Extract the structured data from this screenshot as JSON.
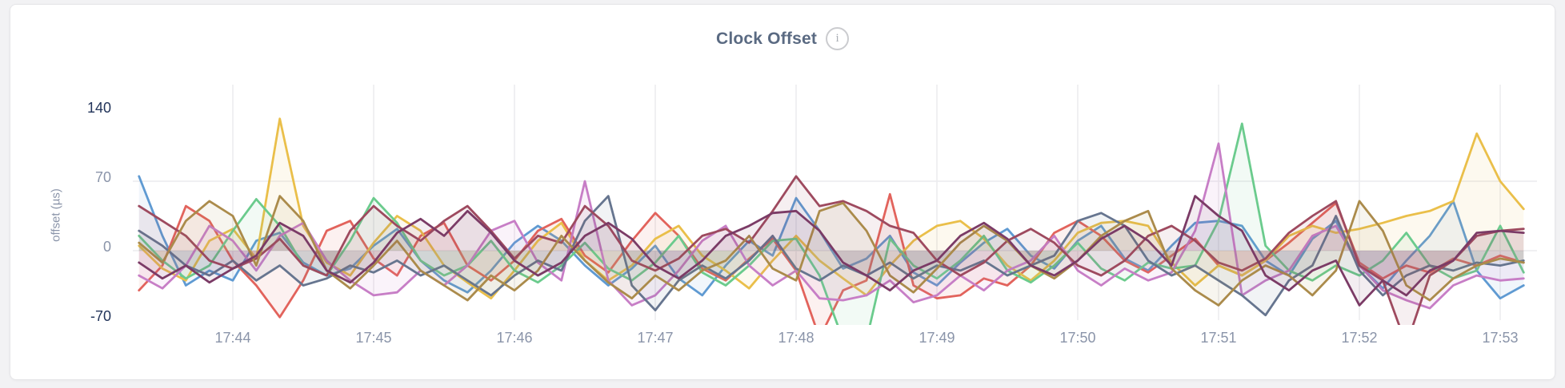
{
  "header": {
    "title": "Clock Offset",
    "info_icon_glyph": "i"
  },
  "colors": {
    "page_background": "#f2f2f4",
    "card_background": "#ffffff",
    "card_border": "#e6e6e9",
    "title_text": "#5a6a82",
    "tick_text": "#8a94a9",
    "tick_text_strong": "#22345a",
    "gridline": "#ececee"
  },
  "chart_data": {
    "type": "line",
    "title": "Clock Offset",
    "xlabel": "",
    "ylabel": "offset (µs)",
    "ylim": [
      -70,
      140
    ],
    "grid": "vertical per minute, horizontal at 0 and 70",
    "legend": "none",
    "y_ticks": [
      {
        "label": "140",
        "value": 140,
        "strong": true
      },
      {
        "label": "70",
        "value": 70,
        "strong": false
      },
      {
        "label": "0",
        "value": 0,
        "strong": false
      },
      {
        "label": "-70",
        "value": -70,
        "strong": true
      }
    ],
    "x_ticks": [
      {
        "label": "17:44",
        "sec": 40
      },
      {
        "label": "17:45",
        "sec": 100
      },
      {
        "label": "17:46",
        "sec": 160
      },
      {
        "label": "17:47",
        "sec": 220
      },
      {
        "label": "17:48",
        "sec": 280
      },
      {
        "label": "17:49",
        "sec": 340
      },
      {
        "label": "17:50",
        "sec": 400
      },
      {
        "label": "17:51",
        "sec": 460
      },
      {
        "label": "17:52",
        "sec": 520
      },
      {
        "label": "17:53",
        "sec": 580
      }
    ],
    "x_start_time": "17:43:20",
    "x_step_sec": 10,
    "series": [
      {
        "name": "blue",
        "color": "#5f9ad2",
        "values": [
          75,
          15,
          -35,
          -20,
          -30,
          10,
          18,
          -12,
          -25,
          -18,
          5,
          22,
          -10,
          -30,
          -42,
          -20,
          8,
          25,
          10,
          -15,
          -35,
          -18,
          5,
          -28,
          -45,
          -15,
          10,
          -5,
          53,
          20,
          -18,
          -8,
          15,
          -22,
          -35,
          -12,
          8,
          22,
          -5,
          -18,
          10,
          25,
          -8,
          -20,
          5,
          28,
          30,
          25,
          -10,
          -25,
          12,
          30,
          -15,
          -38,
          -10,
          15,
          50,
          -20,
          -48,
          -35
        ]
      },
      {
        "name": "red",
        "color": "#e2635c",
        "values": [
          -40,
          -15,
          45,
          30,
          -10,
          -35,
          -67,
          -30,
          20,
          30,
          -8,
          -25,
          15,
          28,
          -15,
          -30,
          -10,
          20,
          32,
          -5,
          -22,
          10,
          38,
          15,
          -18,
          -30,
          -8,
          12,
          -20,
          -88,
          -40,
          -30,
          57,
          -35,
          -48,
          -45,
          -28,
          -35,
          -15,
          18,
          30,
          15,
          -10,
          -22,
          -5,
          12,
          -15,
          -25,
          -10,
          8,
          28,
          48,
          -12,
          -28,
          -15,
          -22,
          -8,
          -15,
          -5,
          -12
        ]
      },
      {
        "name": "gold",
        "color": "#eabf4a",
        "values": [
          5,
          -18,
          -30,
          10,
          22,
          -8,
          133,
          25,
          -12,
          -25,
          8,
          35,
          20,
          -15,
          -32,
          -48,
          -20,
          10,
          28,
          -10,
          -30,
          -15,
          12,
          25,
          -5,
          -20,
          -38,
          -10,
          15,
          -10,
          -28,
          -45,
          -15,
          10,
          25,
          30,
          12,
          -15,
          -30,
          -10,
          18,
          28,
          30,
          25,
          -12,
          -35,
          -15,
          -25,
          -10,
          15,
          25,
          18,
          22,
          28,
          35,
          40,
          50,
          118,
          70,
          42
        ]
      },
      {
        "name": "green",
        "color": "#6bcb8d",
        "values": [
          15,
          -10,
          -28,
          -15,
          20,
          52,
          25,
          -15,
          -25,
          10,
          53,
          28,
          -10,
          -25,
          -15,
          10,
          -20,
          -32,
          -15,
          8,
          -18,
          -30,
          -12,
          15,
          -22,
          -35,
          -15,
          10,
          12,
          -25,
          -90,
          -90,
          12,
          -15,
          -28,
          -10,
          15,
          -20,
          -32,
          -15,
          8,
          -18,
          -30,
          -12,
          -18,
          -15,
          30,
          128,
          5,
          -20,
          -30,
          -15,
          -25,
          -10,
          18,
          -15,
          -28,
          -20,
          25,
          -22
        ]
      },
      {
        "name": "orchid",
        "color": "#c77ec6",
        "values": [
          -25,
          -38,
          -15,
          25,
          10,
          -20,
          15,
          28,
          -10,
          -30,
          -45,
          -42,
          -20,
          -35,
          -15,
          20,
          30,
          -12,
          -30,
          70,
          -30,
          -55,
          -45,
          -20,
          10,
          25,
          -15,
          -35,
          -20,
          -48,
          -50,
          -45,
          -30,
          -52,
          -45,
          -25,
          -40,
          -20,
          -10,
          15,
          -20,
          -35,
          -18,
          -30,
          -22,
          20,
          108,
          -45,
          -30,
          -20,
          15,
          25,
          -15,
          -40,
          -50,
          -58,
          -35,
          -25,
          -30,
          -28
        ]
      },
      {
        "name": "slate",
        "color": "#66758f",
        "values": [
          20,
          5,
          -15,
          -25,
          -10,
          -30,
          -15,
          -35,
          -28,
          -15,
          -22,
          -10,
          -25,
          -15,
          -30,
          -45,
          -25,
          -10,
          -20,
          30,
          55,
          -35,
          -60,
          -30,
          -15,
          -28,
          -10,
          15,
          -18,
          -30,
          -15,
          -25,
          -12,
          -28,
          -15,
          -20,
          -10,
          -25,
          -15,
          -5,
          30,
          38,
          25,
          -10,
          -25,
          -15,
          -30,
          -45,
          -65,
          -30,
          -15,
          35,
          -20,
          -45,
          -25,
          -15,
          -20,
          -12,
          -15,
          -10
        ]
      },
      {
        "name": "maroon",
        "color": "#9e4a5f",
        "values": [
          45,
          30,
          15,
          -10,
          -18,
          -8,
          12,
          -15,
          -25,
          20,
          45,
          25,
          10,
          30,
          45,
          20,
          -8,
          15,
          8,
          45,
          25,
          -10,
          -20,
          -8,
          15,
          22,
          8,
          40,
          75,
          45,
          50,
          40,
          25,
          18,
          -10,
          -25,
          -12,
          10,
          22,
          8,
          -15,
          -25,
          -10,
          15,
          25,
          10,
          -12,
          -20,
          -8,
          18,
          35,
          50,
          -15,
          -30,
          -95,
          -25,
          -10,
          15,
          20,
          22
        ]
      },
      {
        "name": "olive",
        "color": "#ab8b4b",
        "values": [
          8,
          -12,
          30,
          50,
          35,
          -15,
          55,
          30,
          -20,
          -38,
          -15,
          10,
          -20,
          -35,
          -50,
          -25,
          -40,
          -20,
          15,
          -10,
          -32,
          -48,
          -25,
          -40,
          -20,
          -10,
          15,
          -18,
          -30,
          40,
          48,
          20,
          -25,
          -42,
          -18,
          8,
          25,
          10,
          -15,
          -28,
          -10,
          15,
          30,
          40,
          -18,
          -40,
          -55,
          -30,
          -15,
          -25,
          -45,
          -20,
          50,
          20,
          -35,
          -50,
          -28,
          -15,
          -8,
          -12
        ]
      },
      {
        "name": "plum",
        "color": "#7b3b66",
        "values": [
          -12,
          -28,
          -15,
          -32,
          -18,
          -5,
          28,
          15,
          -20,
          -32,
          -12,
          18,
          32,
          15,
          40,
          18,
          -10,
          -25,
          -12,
          15,
          28,
          12,
          -15,
          -28,
          -10,
          15,
          25,
          38,
          40,
          20,
          -12,
          -25,
          -40,
          -20,
          -10,
          15,
          28,
          12,
          -15,
          -25,
          -10,
          12,
          25,
          10,
          -15,
          55,
          35,
          20,
          -25,
          -40,
          -20,
          -10,
          -55,
          -30,
          -45,
          -20,
          -10,
          18,
          20,
          18
        ]
      }
    ]
  }
}
